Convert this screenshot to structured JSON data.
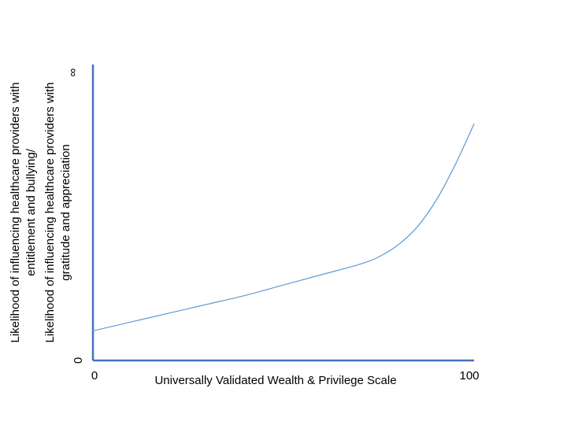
{
  "chart_data": {
    "type": "line",
    "xlabel": "Universally Validated Wealth & Privilege Scale",
    "ylabel_lines": [
      "Likelihood of influencing healthcare providers with",
      "entitlement and bullying/",
      "Likelihood of influencing healthcare providers with",
      "gratitude and appreciation"
    ],
    "x_ticks": [
      "0",
      "100"
    ],
    "y_ticks": [
      "0",
      "∞"
    ],
    "xlim": [
      0,
      100
    ],
    "ylim": [
      0,
      1
    ],
    "grid": false,
    "legend": "none",
    "series": [
      {
        "x": [
          0,
          10,
          20,
          30,
          40,
          50,
          60,
          70,
          75,
          80,
          85,
          90,
          95,
          100
        ],
        "y": [
          0.1,
          0.13,
          0.16,
          0.19,
          0.22,
          0.255,
          0.29,
          0.325,
          0.35,
          0.39,
          0.45,
          0.54,
          0.66,
          0.8
        ],
        "color": "#5b9bd5"
      }
    ],
    "axis_color": "#4472c4"
  }
}
